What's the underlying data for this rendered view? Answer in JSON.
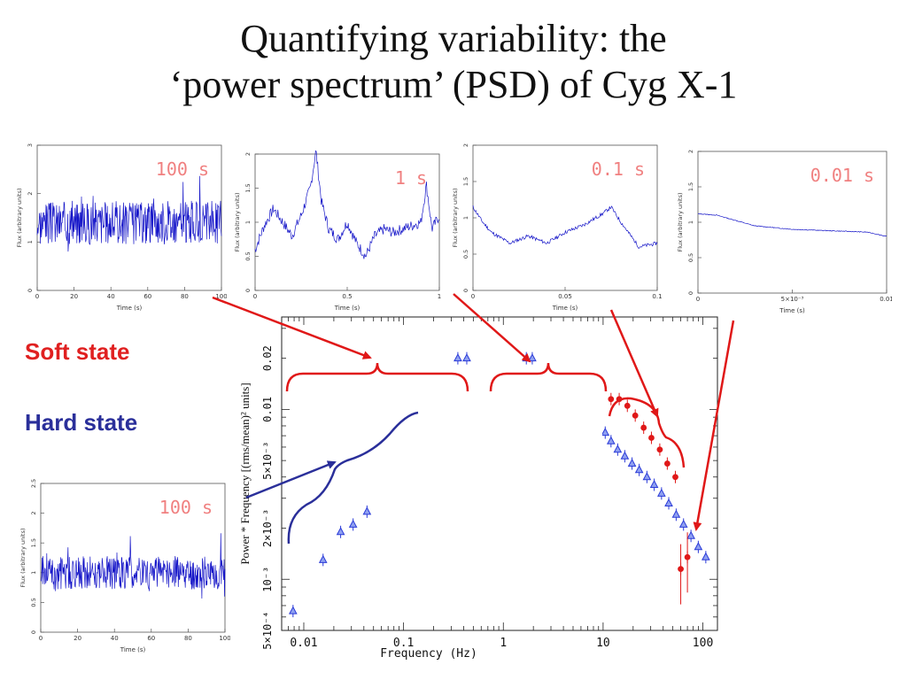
{
  "title_line1": "Quantifying variability: the",
  "title_line2": "‘power spectrum’ (PSD) of Cyg X-1",
  "labels": {
    "soft": "Soft state",
    "hard": "Hard state"
  },
  "colors": {
    "soft": "#e02020",
    "hard": "#2a2f9a",
    "curve": "#1515c8",
    "timescale": "#f08080"
  },
  "chart_data": [
    {
      "type": "line",
      "name": "lc_100s",
      "timescale_label": "100 s",
      "xlabel": "Time (s)",
      "ylabel": "Flux (arbitrary units)",
      "xlim": [
        0,
        100
      ],
      "ylim": [
        0,
        3
      ],
      "xticks": [
        0,
        20,
        40,
        60,
        80,
        100
      ],
      "xtick_labels": [
        "0",
        "20",
        "40",
        "60",
        "80",
        "100"
      ],
      "yticks": [
        0,
        1,
        2,
        3
      ],
      "ytick_labels": [
        "0",
        "1",
        "2",
        "3"
      ],
      "points": 400,
      "level": 1.4,
      "noise": 0.45,
      "seed": 3
    },
    {
      "type": "line",
      "name": "lc_1s",
      "timescale_label": "1 s",
      "xlabel": "Time (s)",
      "ylabel": "Flux (arbitrary units)",
      "xlim": [
        0,
        1
      ],
      "ylim": [
        0,
        2
      ],
      "xticks": [
        0,
        0.5,
        1
      ],
      "xtick_labels": [
        "0",
        "0.5",
        "1"
      ],
      "yticks": [
        0,
        0.5,
        1,
        1.5,
        2
      ],
      "ytick_labels": [
        "0",
        "0.5",
        "1",
        "1.5",
        "2"
      ],
      "key_x": [
        0,
        0.05,
        0.1,
        0.15,
        0.2,
        0.25,
        0.3,
        0.33,
        0.36,
        0.4,
        0.45,
        0.5,
        0.55,
        0.6,
        0.65,
        0.7,
        0.75,
        0.8,
        0.85,
        0.9,
        0.93,
        0.96,
        1.0
      ],
      "key_y": [
        0.6,
        0.95,
        1.2,
        1.0,
        0.8,
        1.1,
        1.5,
        2.05,
        1.3,
        0.9,
        0.75,
        1.0,
        0.7,
        0.5,
        0.8,
        0.9,
        0.85,
        0.9,
        0.95,
        1.0,
        1.55,
        0.9,
        1.1
      ],
      "noise": 0.08,
      "seed": 7
    },
    {
      "type": "line",
      "name": "lc_0.1s",
      "timescale_label": "0.1 s",
      "xlabel": "Time (s)",
      "ylabel": "Flux (arbitrary units)",
      "xlim": [
        0,
        0.1
      ],
      "ylim": [
        0,
        2
      ],
      "xticks": [
        0,
        0.05,
        0.1
      ],
      "xtick_labels": [
        "0",
        "0.05",
        "0.1"
      ],
      "yticks": [
        0,
        0.5,
        1,
        1.5,
        2
      ],
      "ytick_labels": [
        "0",
        "0.5",
        "1",
        "1.5",
        "2"
      ],
      "key_x": [
        0,
        0.005,
        0.01,
        0.02,
        0.03,
        0.04,
        0.05,
        0.06,
        0.07,
        0.075,
        0.08,
        0.09,
        0.1
      ],
      "key_y": [
        1.15,
        0.95,
        0.8,
        0.65,
        0.75,
        0.65,
        0.8,
        0.9,
        1.05,
        1.15,
        0.95,
        0.6,
        0.65
      ],
      "noise": 0.025,
      "seed": 11
    },
    {
      "type": "line",
      "name": "lc_0.01s",
      "timescale_label": "0.01 s",
      "xlabel": "Time (s)",
      "ylabel": "Flux (arbitrary units)",
      "xlim": [
        0,
        0.01
      ],
      "ylim": [
        0,
        2
      ],
      "xticks": [
        0,
        0.005,
        0.01
      ],
      "xtick_labels": [
        "0",
        "5×10⁻³",
        "0.01"
      ],
      "yticks": [
        0,
        0.5,
        1,
        1.5,
        2
      ],
      "ytick_labels": [
        "0",
        "0.5",
        "1",
        "1.5",
        "2"
      ],
      "key_x": [
        0,
        0.001,
        0.003,
        0.005,
        0.007,
        0.009,
        0.01
      ],
      "key_y": [
        1.12,
        1.1,
        0.95,
        0.9,
        0.88,
        0.86,
        0.8
      ],
      "noise": 0.005,
      "seed": 13
    },
    {
      "type": "line",
      "name": "lc_hard_100s",
      "timescale_label": "100 s",
      "xlabel": "Time (s)",
      "ylabel": "Flux (arbitrary units)",
      "xlim": [
        0,
        100
      ],
      "ylim": [
        0,
        2.5
      ],
      "xticks": [
        0,
        20,
        40,
        60,
        80,
        100
      ],
      "xtick_labels": [
        "0",
        "20",
        "40",
        "60",
        "80",
        "100"
      ],
      "yticks": [
        0,
        0.5,
        1,
        1.5,
        2,
        2.5
      ],
      "ytick_labels": [
        "0",
        "0.5",
        "1",
        "1.5",
        "2",
        "2.5"
      ],
      "points": 400,
      "level": 1.0,
      "noise": 0.28,
      "seed": 21
    },
    {
      "type": "scatter",
      "name": "psd",
      "xlabel": "Frequency (Hz)",
      "ylabel": "Power * Frequency [(rms/mean)² units]",
      "xscale": "log",
      "yscale": "log",
      "xlim": [
        0.006,
        140
      ],
      "ylim": [
        0.0005,
        0.035
      ],
      "xticks": [
        0.01,
        0.1,
        1,
        10,
        100
      ],
      "xtick_labels": [
        "0.01",
        "0.1",
        "1",
        "10",
        "100"
      ],
      "yticks": [
        0.0005,
        0.001,
        0.002,
        0.005,
        0.01,
        0.02
      ],
      "ytick_labels": [
        "5×10⁻⁴",
        "10⁻³",
        "2×10⁻³",
        "5×10⁻³",
        "0.01",
        "0.02"
      ],
      "series": [
        {
          "name": "Hard state",
          "marker": "triangle",
          "x": [
            0.0078,
            0.0156,
            0.0234,
            0.0312,
            0.043,
            0.35,
            0.43,
            1.7,
            1.95,
            10.5,
            12.0,
            14.0,
            16.5,
            19.5,
            23.0,
            27.5,
            32.5,
            38.5,
            45.5,
            54.0,
            64.0,
            76.0,
            90.0,
            107.0
          ],
          "y": [
            0.00065,
            0.0013,
            0.0019,
            0.0021,
            0.0025,
            0.02,
            0.02,
            0.02,
            0.02,
            0.0073,
            0.0065,
            0.0058,
            0.0053,
            0.0048,
            0.0044,
            0.004,
            0.0036,
            0.0032,
            0.0028,
            0.0024,
            0.0021,
            0.0018,
            0.00155,
            0.00135
          ]
        },
        {
          "name": "Soft state",
          "marker": "circle",
          "x": [
            12.0,
            14.5,
            17.5,
            21.0,
            25.5,
            30.5,
            37.0,
            44.0,
            53.0,
            60.0,
            70.0
          ],
          "y": [
            0.0115,
            0.0115,
            0.0105,
            0.0092,
            0.0078,
            0.0068,
            0.0058,
            0.0048,
            0.004,
            0.00115,
            0.00135
          ]
        }
      ]
    }
  ]
}
